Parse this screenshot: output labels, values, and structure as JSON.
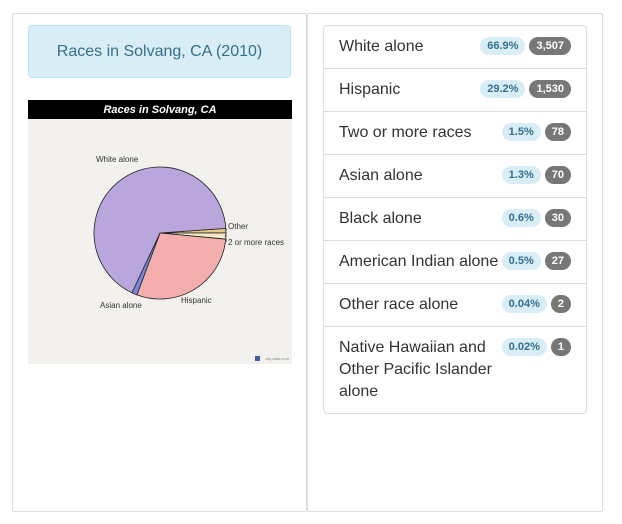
{
  "title": "Races in Solvang, CA (2010)",
  "chart_title": "Races in Solvang, CA",
  "watermark": "city-data.com",
  "chart_data": {
    "type": "pie",
    "title": "Races in Solvang, CA",
    "slices": [
      {
        "name": "White alone",
        "value": 66.9,
        "color": "#b9a6dc"
      },
      {
        "name": "Hispanic",
        "value": 29.2,
        "color": "#f4aeae"
      },
      {
        "name": "2 or more races",
        "value": 1.5,
        "color": "#f5e9c8"
      },
      {
        "name": "Asian alone",
        "value": 1.3,
        "color": "#7a86d9"
      },
      {
        "name": "Other",
        "value": 1.1,
        "color": "#e7c987"
      }
    ],
    "labels": {
      "white": "White alone",
      "other": "Other",
      "more": "2 or more races",
      "hispanic": "Hispanic",
      "asian": "Asian alone"
    }
  },
  "rows": [
    {
      "label": "White alone",
      "pct": "66.9%",
      "count": "3,507"
    },
    {
      "label": "Hispanic",
      "pct": "29.2%",
      "count": "1,530"
    },
    {
      "label": "Two or more races",
      "pct": "1.5%",
      "count": "78"
    },
    {
      "label": "Asian alone",
      "pct": "1.3%",
      "count": "70"
    },
    {
      "label": "Black alone",
      "pct": "0.6%",
      "count": "30"
    },
    {
      "label": "American Indian alone",
      "pct": "0.5%",
      "count": "27"
    },
    {
      "label": "Other race alone",
      "pct": "0.04%",
      "count": "2"
    },
    {
      "label": "Native Hawaiian and Other Pacific Islander alone",
      "pct": "0.02%",
      "count": "1"
    }
  ]
}
